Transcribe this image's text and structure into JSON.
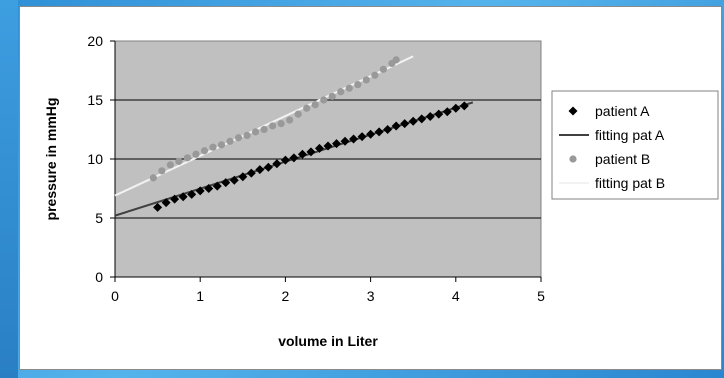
{
  "chart_data": {
    "type": "scatter",
    "xlabel": "volume in Liter",
    "ylabel": "pressure in mmHg",
    "xlim": [
      0,
      5
    ],
    "ylim": [
      0,
      20
    ],
    "xticks": [
      "0",
      "1",
      "2",
      "3",
      "4",
      "5"
    ],
    "yticks": [
      "0",
      "5",
      "10",
      "15",
      "20"
    ],
    "plot_background": "#c0c0c0",
    "grid": "horizontal",
    "legend_position": "right",
    "series": [
      {
        "name": "patient A",
        "kind": "markers",
        "marker": "diamond",
        "color": "#000000",
        "x": [
          0.5,
          0.6,
          0.7,
          0.8,
          0.9,
          1.0,
          1.1,
          1.2,
          1.3,
          1.4,
          1.5,
          1.6,
          1.7,
          1.8,
          1.9,
          2.0,
          2.1,
          2.2,
          2.3,
          2.4,
          2.5,
          2.6,
          2.7,
          2.8,
          2.9,
          3.0,
          3.1,
          3.2,
          3.3,
          3.4,
          3.5,
          3.6,
          3.7,
          3.8,
          3.9,
          4.0,
          4.1
        ],
        "y": [
          5.9,
          6.3,
          6.6,
          6.8,
          7.0,
          7.3,
          7.5,
          7.7,
          8.0,
          8.2,
          8.5,
          8.8,
          9.1,
          9.3,
          9.6,
          9.9,
          10.1,
          10.4,
          10.6,
          10.9,
          11.1,
          11.3,
          11.5,
          11.7,
          11.9,
          12.1,
          12.3,
          12.5,
          12.8,
          13.0,
          13.2,
          13.4,
          13.6,
          13.8,
          14.0,
          14.3,
          14.5
        ]
      },
      {
        "name": "fitting pat A",
        "kind": "line",
        "color": "#404040",
        "x": [
          0,
          4.2
        ],
        "y": [
          5.2,
          14.8
        ]
      },
      {
        "name": "patient B",
        "kind": "markers",
        "marker": "circle",
        "color": "#999999",
        "x": [
          0.45,
          0.55,
          0.65,
          0.75,
          0.85,
          0.95,
          1.05,
          1.15,
          1.25,
          1.35,
          1.45,
          1.55,
          1.65,
          1.75,
          1.85,
          1.95,
          2.05,
          2.15,
          2.25,
          2.35,
          2.45,
          2.55,
          2.65,
          2.75,
          2.85,
          2.95,
          3.05,
          3.15,
          3.25,
          3.3
        ],
        "y": [
          8.4,
          9.0,
          9.5,
          9.8,
          10.1,
          10.4,
          10.7,
          11.0,
          11.2,
          11.5,
          11.8,
          12.0,
          12.3,
          12.5,
          12.8,
          13.0,
          13.3,
          13.8,
          14.3,
          14.6,
          15.0,
          15.3,
          15.7,
          16.0,
          16.3,
          16.7,
          17.1,
          17.6,
          18.1,
          18.4
        ]
      },
      {
        "name": "fitting pat B",
        "kind": "line",
        "color": "#f2f2f2",
        "x": [
          0,
          3.5
        ],
        "y": [
          6.9,
          18.7
        ]
      }
    ]
  }
}
